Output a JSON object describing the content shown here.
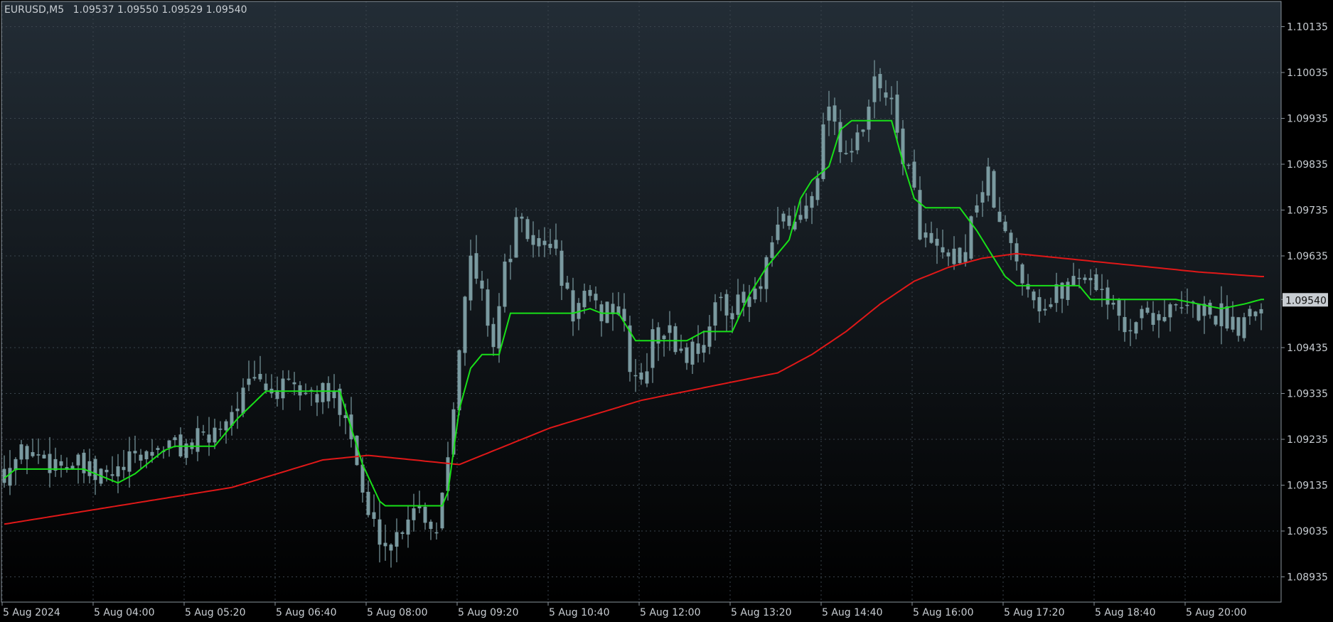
{
  "header": {
    "symbol": "EURUSD,M5",
    "ohlc": "1.09537 1.09550 1.09529 1.09540"
  },
  "colors": {
    "bg_top": "#232d36",
    "bg_bottom": "#000000",
    "grid": "#3a444d",
    "axis": "#8a939b",
    "candle": "#7a9aa0",
    "fast_ma": "#18e018",
    "slow_ma": "#e01818",
    "badge_bg": "#c8cdd2"
  },
  "chart_data": {
    "type": "candlestick",
    "timeframe": "M5",
    "ylim": [
      1.0888,
      1.1019
    ],
    "y_ticks": [
      "1.10135",
      "1.10035",
      "1.09935",
      "1.09835",
      "1.09735",
      "1.09635",
      "1.09540",
      "1.09435",
      "1.09335",
      "1.09235",
      "1.09135",
      "1.09035",
      "1.08935"
    ],
    "y_tick_values": [
      1.10135,
      1.10035,
      1.09935,
      1.09835,
      1.09735,
      1.09635,
      1.0954,
      1.09435,
      1.09335,
      1.09235,
      1.09135,
      1.09035,
      1.08935
    ],
    "current_price": 1.0954,
    "current_price_label": "1.09540",
    "x_ticks": [
      "5 Aug 2024",
      "5 Aug 04:00",
      "5 Aug 05:20",
      "5 Aug 06:40",
      "5 Aug 08:00",
      "5 Aug 09:20",
      "5 Aug 10:40",
      "5 Aug 12:00",
      "5 Aug 13:20",
      "5 Aug 14:40",
      "5 Aug 16:00",
      "5 Aug 17:20",
      "5 Aug 18:40",
      "5 Aug 20:00"
    ],
    "x_tick_bar_index": [
      0,
      16,
      32,
      48,
      64,
      80,
      96,
      112,
      128,
      144,
      160,
      176,
      192,
      208
    ],
    "bar_count": 222,
    "close_anchors": [
      [
        0,
        1.0917
      ],
      [
        4,
        1.0921
      ],
      [
        8,
        1.0919
      ],
      [
        12,
        1.0918
      ],
      [
        16,
        1.0915
      ],
      [
        20,
        1.0916
      ],
      [
        24,
        1.092
      ],
      [
        28,
        1.0922
      ],
      [
        32,
        1.0922
      ],
      [
        36,
        1.0924
      ],
      [
        40,
        1.093
      ],
      [
        44,
        1.0936
      ],
      [
        48,
        1.0934
      ],
      [
        52,
        1.0934
      ],
      [
        56,
        1.0933
      ],
      [
        60,
        1.0931
      ],
      [
        62,
        1.0918
      ],
      [
        64,
        1.0906
      ],
      [
        66,
        1.0903
      ],
      [
        68,
        1.09
      ],
      [
        72,
        1.091
      ],
      [
        76,
        1.0904
      ],
      [
        78,
        1.0921
      ],
      [
        80,
        1.0945
      ],
      [
        82,
        1.0962
      ],
      [
        84,
        1.0955
      ],
      [
        86,
        1.0945
      ],
      [
        88,
        1.096
      ],
      [
        90,
        1.097
      ],
      [
        92,
        1.0968
      ],
      [
        95,
        1.0965
      ],
      [
        96,
        1.0968
      ],
      [
        98,
        1.0958
      ],
      [
        100,
        1.0951
      ],
      [
        102,
        1.0954
      ],
      [
        104,
        1.0951
      ],
      [
        108,
        1.0953
      ],
      [
        110,
        1.094
      ],
      [
        112,
        1.0935
      ],
      [
        114,
        1.0945
      ],
      [
        116,
        1.0948
      ],
      [
        118,
        1.0944
      ],
      [
        120,
        1.0942
      ],
      [
        124,
        1.0947
      ],
      [
        126,
        1.0955
      ],
      [
        128,
        1.0952
      ],
      [
        130,
        1.0953
      ],
      [
        133,
        1.0956
      ],
      [
        135,
        1.0965
      ],
      [
        137,
        1.0972
      ],
      [
        139,
        1.097
      ],
      [
        141,
        1.0975
      ],
      [
        143,
        1.0983
      ],
      [
        145,
        1.0998
      ],
      [
        147,
        1.0988
      ],
      [
        149,
        1.0986
      ],
      [
        151,
        1.099
      ],
      [
        153,
        1.1001
      ],
      [
        155,
        1.1
      ],
      [
        157,
        1.099
      ],
      [
        159,
        1.0982
      ],
      [
        161,
        1.097
      ],
      [
        163,
        1.0965
      ],
      [
        165,
        1.0963
      ],
      [
        167,
        1.096
      ],
      [
        169,
        1.0965
      ],
      [
        171,
        1.0976
      ],
      [
        173,
        1.098
      ],
      [
        175,
        1.097
      ],
      [
        177,
        1.0965
      ],
      [
        179,
        1.096
      ],
      [
        181,
        1.0955
      ],
      [
        183,
        1.0952
      ],
      [
        185,
        1.0955
      ],
      [
        189,
        1.096
      ],
      [
        193,
        1.0957
      ],
      [
        195,
        1.0951
      ],
      [
        197,
        1.0948
      ],
      [
        199,
        1.095
      ],
      [
        201,
        1.0951
      ],
      [
        205,
        1.0951
      ],
      [
        209,
        1.0952
      ],
      [
        213,
        1.0951
      ],
      [
        215,
        1.095
      ],
      [
        217,
        1.0949
      ],
      [
        219,
        1.0952
      ],
      [
        221,
        1.0954
      ]
    ],
    "fast_ma_anchors": [
      [
        0,
        1.0915
      ],
      [
        2,
        1.0917
      ],
      [
        10,
        1.0917
      ],
      [
        14,
        1.0917
      ],
      [
        18,
        1.0915
      ],
      [
        20,
        1.0914
      ],
      [
        23,
        1.0916
      ],
      [
        28,
        1.0921
      ],
      [
        30,
        1.0922
      ],
      [
        37,
        1.0922
      ],
      [
        41,
        1.0928
      ],
      [
        46,
        1.0934
      ],
      [
        58,
        1.0934
      ],
      [
        59,
        1.0934
      ],
      [
        63,
        1.0918
      ],
      [
        66,
        1.091
      ],
      [
        67,
        1.0909
      ],
      [
        77,
        1.0909
      ],
      [
        78,
        1.0912
      ],
      [
        80,
        1.093
      ],
      [
        82,
        1.0939
      ],
      [
        84,
        1.0942
      ],
      [
        87,
        1.0942
      ],
      [
        89,
        1.0951
      ],
      [
        100,
        1.0951
      ],
      [
        103,
        1.0952
      ],
      [
        105,
        1.0951
      ],
      [
        108,
        1.0951
      ],
      [
        111,
        1.0945
      ],
      [
        113,
        1.0945
      ],
      [
        120,
        1.0945
      ],
      [
        123,
        1.0947
      ],
      [
        128,
        1.0947
      ],
      [
        131,
        1.0955
      ],
      [
        134,
        1.0961
      ],
      [
        138,
        1.0967
      ],
      [
        140,
        1.0976
      ],
      [
        142,
        1.098
      ],
      [
        145,
        1.0983
      ],
      [
        147,
        1.0991
      ],
      [
        149,
        1.0993
      ],
      [
        156,
        1.0993
      ],
      [
        158,
        1.0984
      ],
      [
        160,
        1.0976
      ],
      [
        162,
        1.0974
      ],
      [
        168,
        1.0974
      ],
      [
        171,
        1.0969
      ],
      [
        174,
        1.0963
      ],
      [
        176,
        1.0959
      ],
      [
        178,
        1.0957
      ],
      [
        189,
        1.0957
      ],
      [
        191,
        1.0954
      ],
      [
        193,
        1.0954
      ],
      [
        206,
        1.0954
      ],
      [
        210,
        1.0953
      ],
      [
        214,
        1.0952
      ],
      [
        218,
        1.0953
      ],
      [
        221,
        1.0954
      ]
    ],
    "slow_ma_anchors": [
      [
        0,
        1.0905
      ],
      [
        10,
        1.0907
      ],
      [
        20,
        1.0909
      ],
      [
        30,
        1.0911
      ],
      [
        40,
        1.0913
      ],
      [
        48,
        1.0916
      ],
      [
        56,
        1.0919
      ],
      [
        64,
        1.092
      ],
      [
        72,
        1.0919
      ],
      [
        80,
        1.0918
      ],
      [
        88,
        1.0922
      ],
      [
        96,
        1.0926
      ],
      [
        104,
        1.0929
      ],
      [
        112,
        1.0932
      ],
      [
        120,
        1.0934
      ],
      [
        128,
        1.0936
      ],
      [
        136,
        1.0938
      ],
      [
        142,
        1.0942
      ],
      [
        148,
        1.0947
      ],
      [
        154,
        1.0953
      ],
      [
        160,
        1.0958
      ],
      [
        166,
        1.0961
      ],
      [
        172,
        1.0963
      ],
      [
        178,
        1.0964
      ],
      [
        186,
        1.0963
      ],
      [
        194,
        1.0962
      ],
      [
        202,
        1.0961
      ],
      [
        210,
        1.096
      ],
      [
        221,
        1.0959
      ]
    ]
  }
}
